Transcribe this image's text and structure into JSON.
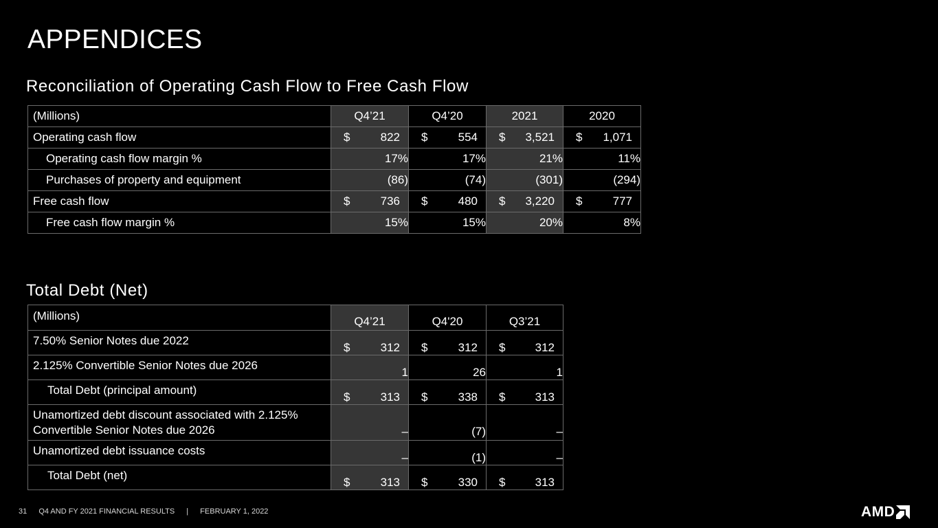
{
  "slide": {
    "title": "APPENDICES",
    "page_number": "31",
    "footer_text": "Q4 AND FY 2021 FINANCIAL RESULTS",
    "footer_separator": "|",
    "footer_date": "FEBRUARY 1, 2022",
    "logo_text": "AMD"
  },
  "cashflow": {
    "title": "Reconciliation of Operating Cash Flow to Free Cash Flow",
    "header_label": "(Millions)",
    "columns": [
      "Q4’21",
      "Q4’20",
      "2021",
      "2020"
    ],
    "rows": [
      {
        "label": "Operating cash flow",
        "cells": [
          {
            "cur": "$",
            "val": "822"
          },
          {
            "cur": "$",
            "val": "554"
          },
          {
            "cur": "$",
            "val": "3,521"
          },
          {
            "cur": "$",
            "val": "1,071"
          }
        ]
      },
      {
        "label": "Operating cash flow margin %",
        "cells": [
          {
            "val": "17%"
          },
          {
            "val": "17%"
          },
          {
            "val": "21%"
          },
          {
            "val": "11%"
          }
        ]
      },
      {
        "label": "Purchases of property and equipment",
        "cells": [
          {
            "val": "(86)"
          },
          {
            "val": "(74)"
          },
          {
            "val": "(301)"
          },
          {
            "val": "(294)"
          }
        ]
      },
      {
        "label": "Free cash flow",
        "cells": [
          {
            "cur": "$",
            "val": "736"
          },
          {
            "cur": "$",
            "val": "480"
          },
          {
            "cur": "$",
            "val": "3,220"
          },
          {
            "cur": "$",
            "val": "777"
          }
        ]
      },
      {
        "label": "Free cash flow margin %",
        "cells": [
          {
            "val": "15%"
          },
          {
            "val": "15%"
          },
          {
            "val": "20%"
          },
          {
            "val": "8%"
          }
        ]
      }
    ]
  },
  "debt": {
    "title": "Total Debt (Net)",
    "header_label": "(Millions)",
    "columns": [
      "Q4’21",
      "Q4'20",
      "Q3’21"
    ],
    "rows": [
      {
        "label": "7.50% Senior Notes due 2022",
        "cells": [
          {
            "cur": "$",
            "val": "312"
          },
          {
            "cur": "$",
            "val": "312"
          },
          {
            "cur": "$",
            "val": "312"
          }
        ]
      },
      {
        "label": "2.125% Convertible Senior Notes due 2026",
        "cells": [
          {
            "val": "1"
          },
          {
            "val": "26"
          },
          {
            "val": "1"
          }
        ]
      },
      {
        "label": "Total Debt (principal amount)",
        "cells": [
          {
            "cur": "$",
            "val": "313"
          },
          {
            "cur": "$",
            "val": "338"
          },
          {
            "cur": "$",
            "val": "313"
          }
        ]
      },
      {
        "label_line1": "Unamortized debt discount associated with 2.125%",
        "label_line2": "Convertible Senior Notes due 2026",
        "cells": [
          {
            "val": "–"
          },
          {
            "val": "(7)"
          },
          {
            "val": "–"
          }
        ]
      },
      {
        "label": "Unamortized debt issuance costs",
        "cells": [
          {
            "val": "–"
          },
          {
            "val": "(1)"
          },
          {
            "val": "–"
          }
        ]
      },
      {
        "label": "Total Debt (net)",
        "cells": [
          {
            "cur": "$",
            "val": "313"
          },
          {
            "cur": "$",
            "val": "330"
          },
          {
            "cur": "$",
            "val": "313"
          }
        ]
      }
    ]
  }
}
